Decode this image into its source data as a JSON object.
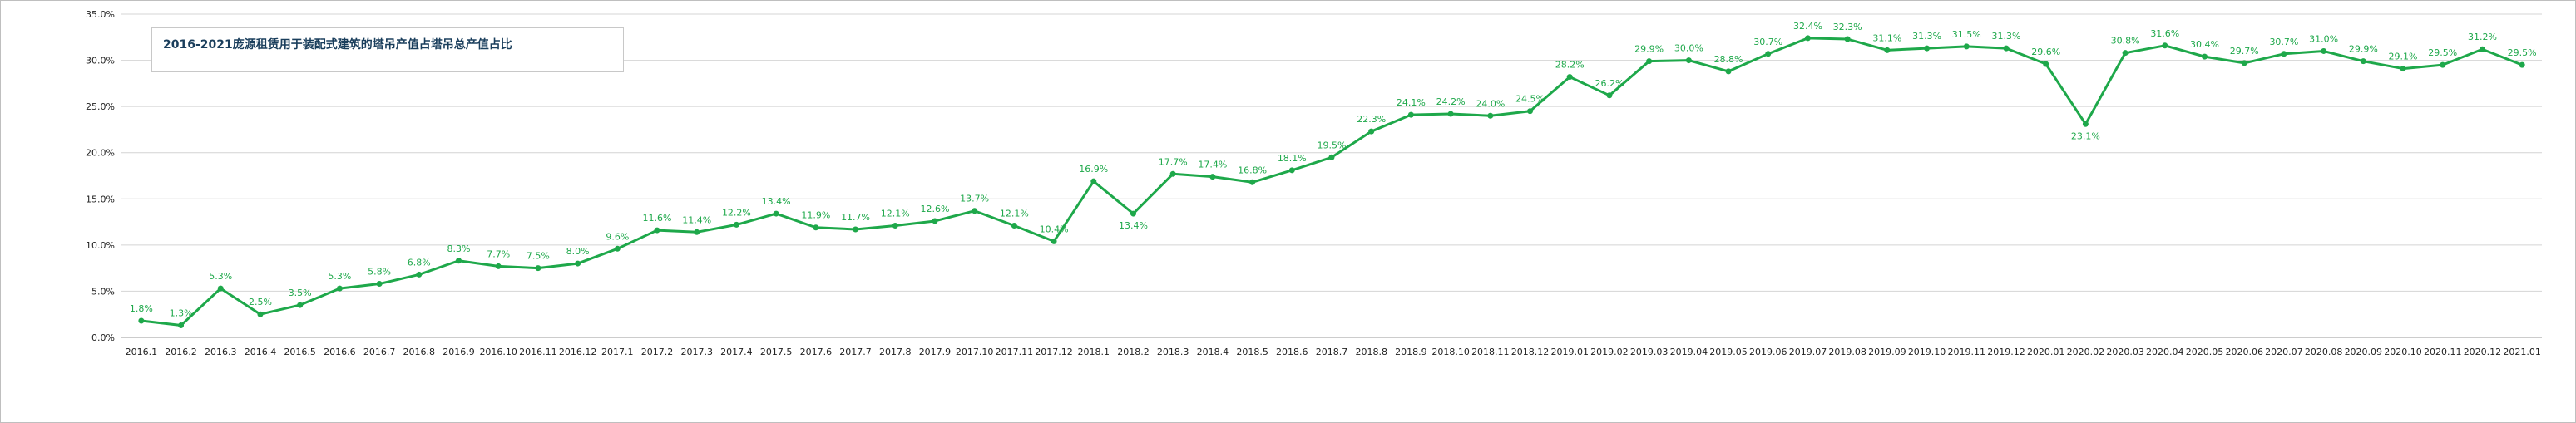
{
  "chart_data": {
    "type": "line",
    "title": "2016-2021庞源租赁用于装配式建筑的塔吊产值占塔吊总产值占比",
    "xlabel": "",
    "ylabel": "",
    "ylim": [
      0,
      35
    ],
    "yticks": [
      "0.0%",
      "5.0%",
      "10.0%",
      "15.0%",
      "20.0%",
      "25.0%",
      "30.0%",
      "35.0%"
    ],
    "grid": true,
    "line_color": "#1ea84a",
    "categories": [
      "2016.1",
      "2016.2",
      "2016.3",
      "2016.4",
      "2016.5",
      "2016.6",
      "2016.7",
      "2016.8",
      "2016.9",
      "2016.10",
      "2016.11",
      "2016.12",
      "2017.1",
      "2017.2",
      "2017.3",
      "2017.4",
      "2017.5",
      "2017.6",
      "2017.7",
      "2017.8",
      "2017.9",
      "2017.10",
      "2017.11",
      "2017.12",
      "2018.1",
      "2018.2",
      "2018.3",
      "2018.4",
      "2018.5",
      "2018.6",
      "2018.7",
      "2018.8",
      "2018.9",
      "2018.10",
      "2018.11",
      "2018.12",
      "2019.01",
      "2019.02",
      "2019.03",
      "2019.04",
      "2019.05",
      "2019.06",
      "2019.07",
      "2019.08",
      "2019.09",
      "2019.10",
      "2019.11",
      "2019.12",
      "2020.01",
      "2020.02",
      "2020.03",
      "2020.04",
      "2020.05",
      "2020.06",
      "2020.07",
      "2020.08",
      "2020.09",
      "2020.10",
      "2020.11",
      "2020.12",
      "2021.01"
    ],
    "values": [
      1.8,
      1.3,
      5.3,
      2.5,
      3.5,
      5.3,
      5.8,
      6.8,
      8.3,
      7.7,
      7.5,
      8.0,
      9.6,
      11.6,
      11.4,
      12.2,
      13.4,
      11.9,
      11.7,
      12.1,
      12.6,
      13.7,
      12.1,
      10.4,
      16.9,
      13.4,
      17.7,
      17.4,
      16.8,
      18.1,
      19.5,
      22.3,
      24.1,
      24.2,
      24.0,
      24.5,
      28.2,
      26.2,
      29.9,
      30.0,
      28.8,
      30.7,
      32.4,
      32.3,
      31.1,
      31.3,
      31.5,
      31.3,
      29.6,
      23.1,
      30.8,
      31.6,
      30.4,
      29.7,
      30.7,
      31.0,
      29.9,
      29.1,
      29.5,
      31.2,
      29.5
    ],
    "data_labels": [
      "1.8%",
      "1.3%",
      "5.3%",
      "2.5%",
      "3.5%",
      "5.3%",
      "5.8%",
      "6.8%",
      "8.3%",
      "7.7%",
      "7.5%",
      "8.0%",
      "9.6%",
      "11.6%",
      "11.4%",
      "12.2%",
      "13.4%",
      "11.9%",
      "11.7%",
      "12.1%",
      "12.6%",
      "13.7%",
      "12.1%",
      "10.4%",
      "16.9%",
      "13.4%",
      "17.7%",
      "17.4%",
      "16.8%",
      "18.1%",
      "19.5%",
      "22.3%",
      "24.1%",
      "24.2%",
      "24.0%",
      "24.5%",
      "28.2%",
      "26.2%",
      "29.9%",
      "30.0%",
      "28.8%",
      "30.7%",
      "32.4%",
      "32.3%",
      "31.1%",
      "31.3%",
      "31.5%",
      "31.3%",
      "29.6%",
      "23.1%",
      "30.8%",
      "31.6%",
      "30.4%",
      "29.7%",
      "30.7%",
      "31.0%",
      "29.9%",
      "29.1%",
      "29.5%",
      "31.2%",
      "29.5%"
    ]
  }
}
